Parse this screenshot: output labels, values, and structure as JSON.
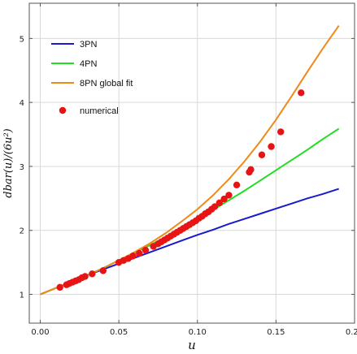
{
  "chart_data": {
    "type": "line",
    "xlabel": "u",
    "ylabel": "dbar(u)/(6u²)",
    "xlim": [
      -0.007,
      0.2
    ],
    "ylim": [
      0.55,
      5.55
    ],
    "x_ticks": [
      {
        "value": 0.0,
        "label": "0.00"
      },
      {
        "value": 0.05,
        "label": "0.05"
      },
      {
        "value": 0.1,
        "label": "0.10"
      },
      {
        "value": 0.15,
        "label": "0.15"
      },
      {
        "value": 0.2,
        "label": "0.20"
      }
    ],
    "y_ticks": [
      {
        "value": 1,
        "label": "1"
      },
      {
        "value": 2,
        "label": "2"
      },
      {
        "value": 3,
        "label": "3"
      },
      {
        "value": 4,
        "label": "4"
      },
      {
        "value": 5,
        "label": "5"
      }
    ],
    "grid": true,
    "legend_position": "top-left",
    "series": [
      {
        "name": "3PN",
        "kind": "line",
        "color": "#1a1acc",
        "x": [
          0.0,
          0.01,
          0.02,
          0.03,
          0.04,
          0.05,
          0.06,
          0.07,
          0.08,
          0.09,
          0.1,
          0.11,
          0.12,
          0.13,
          0.14,
          0.15,
          0.16,
          0.17,
          0.18,
          0.19
        ],
        "y": [
          1.0,
          1.1,
          1.2,
          1.3,
          1.39,
          1.48,
          1.57,
          1.66,
          1.75,
          1.84,
          1.93,
          2.01,
          2.1,
          2.18,
          2.26,
          2.34,
          2.42,
          2.5,
          2.57,
          2.65
        ]
      },
      {
        "name": "4PN",
        "kind": "line",
        "color": "#22dd22",
        "x": [
          0.0,
          0.01,
          0.02,
          0.03,
          0.04,
          0.05,
          0.06,
          0.07,
          0.08,
          0.09,
          0.1,
          0.11,
          0.12,
          0.13,
          0.14,
          0.15,
          0.16,
          0.17,
          0.18,
          0.19
        ],
        "y": [
          1.0,
          1.1,
          1.2,
          1.3,
          1.41,
          1.53,
          1.65,
          1.77,
          1.9,
          2.03,
          2.17,
          2.32,
          2.47,
          2.62,
          2.78,
          2.94,
          3.1,
          3.26,
          3.43,
          3.59
        ]
      },
      {
        "name": "8PN global fit",
        "kind": "line",
        "color": "#ee8a1a",
        "x": [
          0.0,
          0.01,
          0.02,
          0.03,
          0.04,
          0.05,
          0.06,
          0.07,
          0.08,
          0.09,
          0.1,
          0.11,
          0.12,
          0.13,
          0.14,
          0.15,
          0.16,
          0.17,
          0.18,
          0.19
        ],
        "y": [
          1.0,
          1.1,
          1.2,
          1.3,
          1.41,
          1.53,
          1.66,
          1.8,
          1.96,
          2.14,
          2.33,
          2.55,
          2.8,
          3.08,
          3.39,
          3.73,
          4.1,
          4.48,
          4.85,
          5.2
        ]
      },
      {
        "name": "numerical",
        "kind": "scatter",
        "color": "#e81414",
        "x": [
          0.0125,
          0.0167,
          0.0185,
          0.0205,
          0.0225,
          0.0245,
          0.0265,
          0.0285,
          0.033,
          0.04,
          0.05,
          0.053,
          0.056,
          0.059,
          0.063,
          0.067,
          0.072,
          0.075,
          0.077,
          0.079,
          0.081,
          0.083,
          0.085,
          0.087,
          0.089,
          0.091,
          0.093,
          0.095,
          0.097,
          0.099,
          0.101,
          0.103,
          0.105,
          0.107,
          0.109,
          0.111,
          0.114,
          0.117,
          0.12,
          0.125,
          0.133,
          0.134,
          0.141,
          0.147,
          0.153,
          0.166
        ],
        "y": [
          1.11,
          1.15,
          1.17,
          1.19,
          1.21,
          1.23,
          1.26,
          1.28,
          1.32,
          1.37,
          1.5,
          1.53,
          1.56,
          1.6,
          1.64,
          1.69,
          1.75,
          1.79,
          1.82,
          1.85,
          1.88,
          1.91,
          1.94,
          1.97,
          2.0,
          2.03,
          2.06,
          2.09,
          2.12,
          2.15,
          2.19,
          2.22,
          2.26,
          2.29,
          2.33,
          2.37,
          2.43,
          2.49,
          2.55,
          2.71,
          2.91,
          2.95,
          3.18,
          3.31,
          3.54,
          4.15
        ]
      }
    ]
  }
}
